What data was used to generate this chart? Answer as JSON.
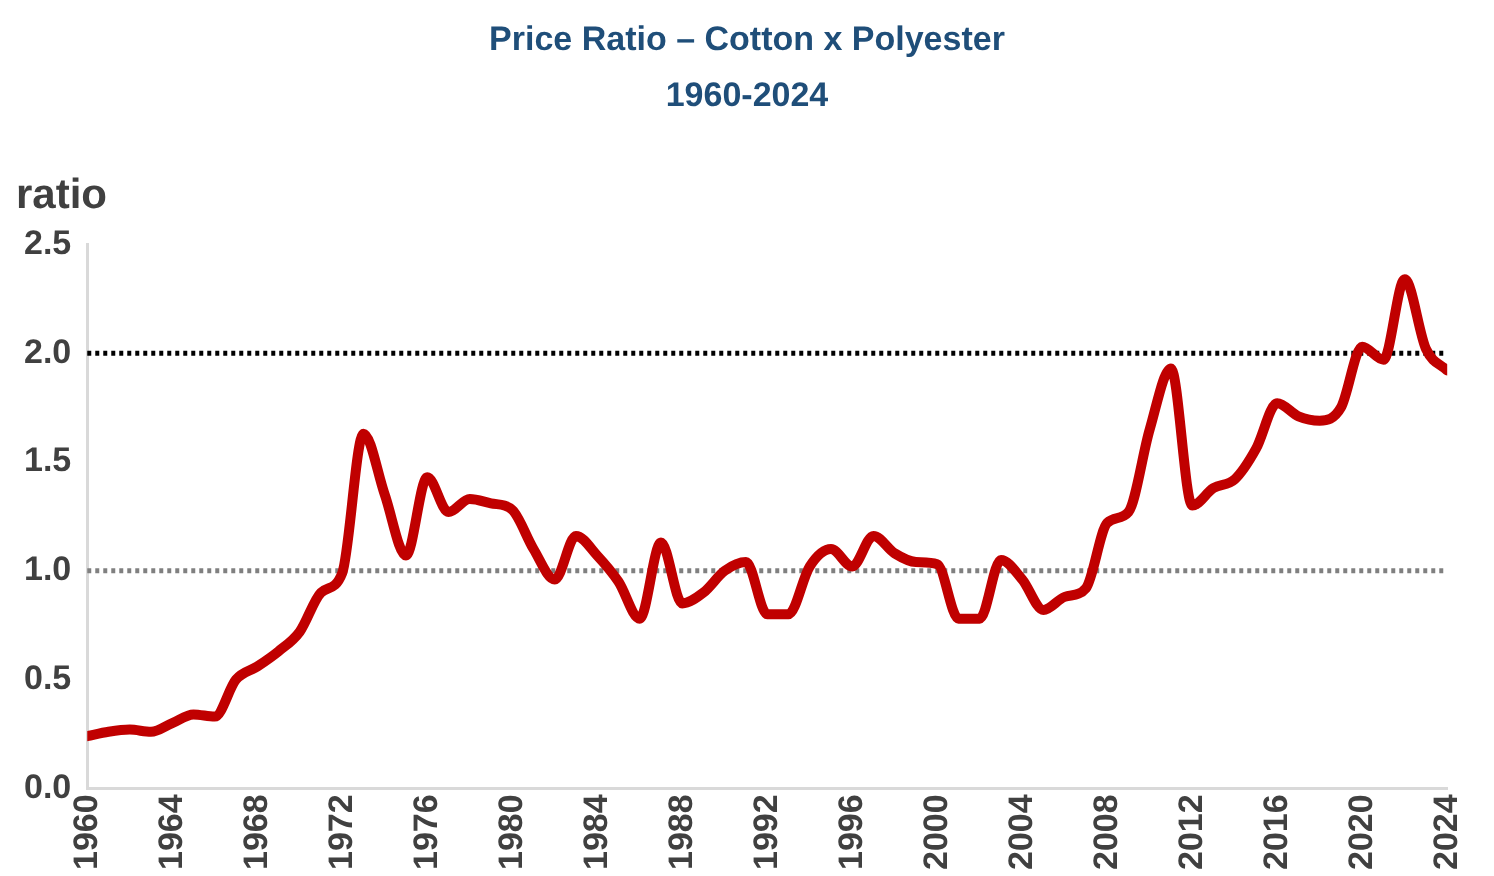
{
  "chart_data": {
    "type": "line",
    "title": "Price Ratio – Cotton x Polyester",
    "subtitle": "1960-2024",
    "ylabel": "ratio",
    "x": [
      1960,
      1961,
      1962,
      1963,
      1964,
      1965,
      1966,
      1967,
      1968,
      1969,
      1970,
      1971,
      1972,
      1973,
      1974,
      1975,
      1976,
      1977,
      1978,
      1979,
      1980,
      1981,
      1982,
      1983,
      1984,
      1985,
      1986,
      1987,
      1988,
      1989,
      1990,
      1991,
      1992,
      1993,
      1994,
      1995,
      1996,
      1997,
      1998,
      1999,
      2000,
      2001,
      2002,
      2003,
      2004,
      2005,
      2006,
      2007,
      2008,
      2009,
      2010,
      2011,
      2012,
      2013,
      2014,
      2015,
      2016,
      2017,
      2018,
      2019,
      2020,
      2021,
      2022,
      2023,
      2024
    ],
    "series": [
      {
        "color": "#c00000",
        "values": [
          0.24,
          0.26,
          0.27,
          0.26,
          0.3,
          0.34,
          0.33,
          0.5,
          0.56,
          0.63,
          0.72,
          0.9,
          0.99,
          1.63,
          1.35,
          1.07,
          1.43,
          1.27,
          1.33,
          1.31,
          1.28,
          1.1,
          0.96,
          1.16,
          1.07,
          0.95,
          0.78,
          1.13,
          0.85,
          0.9,
          1.0,
          1.04,
          0.8,
          0.8,
          1.02,
          1.1,
          1.02,
          1.16,
          1.08,
          1.04,
          1.03,
          0.78,
          0.78,
          1.05,
          0.96,
          0.82,
          0.88,
          0.92,
          1.22,
          1.27,
          1.65,
          1.93,
          1.3,
          1.38,
          1.42,
          1.56,
          1.77,
          1.71,
          1.69,
          1.75,
          2.03,
          1.97,
          2.34,
          2.02,
          1.92
        ]
      }
    ],
    "xlim": [
      1960,
      2024
    ],
    "xticks": [
      1960,
      1964,
      1968,
      1972,
      1976,
      1980,
      1984,
      1988,
      1992,
      1996,
      2000,
      2004,
      2008,
      2012,
      2016,
      2020,
      2024
    ],
    "ylim": [
      0,
      2.5
    ],
    "yticks": [
      {
        "value": 0,
        "label": "0.0"
      },
      {
        "value": 0.5,
        "label": "0.5"
      },
      {
        "value": 1,
        "label": "1.0"
      },
      {
        "value": 1.5,
        "label": "1.5"
      },
      {
        "value": 2,
        "label": "2.0"
      },
      {
        "value": 2.5,
        "label": "2.5"
      }
    ],
    "ref_lines": [
      {
        "axis": "y",
        "value": 2,
        "color": "#000000",
        "line_style": "dotted"
      },
      {
        "axis": "y",
        "value": 1,
        "color": "#808080",
        "line_style": "dotted"
      }
    ],
    "grid": false,
    "legend": false,
    "marker": "none",
    "line_style": "solid"
  }
}
